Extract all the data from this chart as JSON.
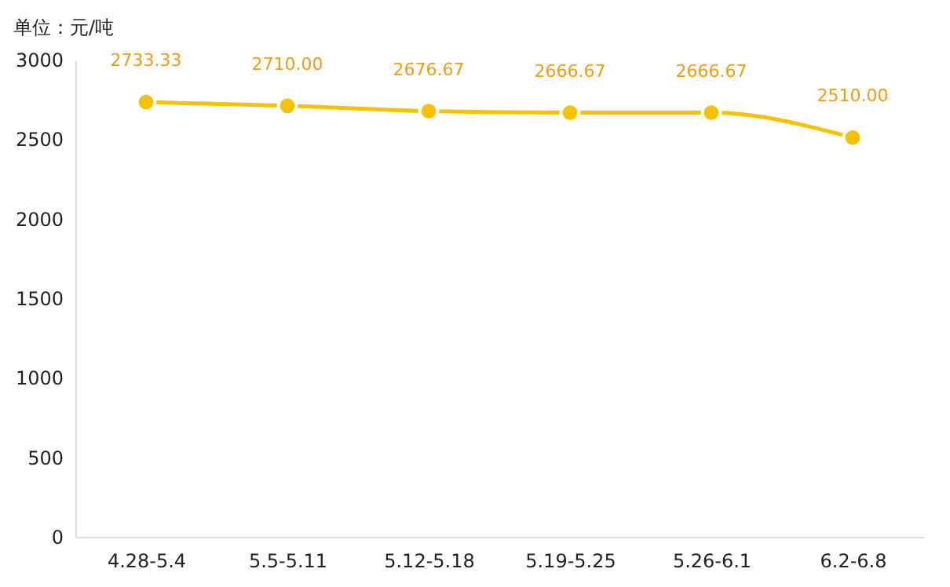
{
  "chart_data": {
    "type": "line",
    "ylabel": "单位：元/吨",
    "categories": [
      "4.28-5.4",
      "5.5-5.11",
      "5.12-5.18",
      "5.19-5.25",
      "5.26-6.1",
      "6.2-6.8"
    ],
    "series": [
      {
        "color": "#f7c100",
        "values": [
          2733.33,
          2710.0,
          2676.67,
          2666.67,
          2666.67,
          2510.0
        ]
      }
    ],
    "value_labels": [
      "2733.33",
      "2710.00",
      "2676.67",
      "2666.67",
      "2666.67",
      "2510.00"
    ],
    "ylim": [
      0,
      3000
    ],
    "yticks": [
      0,
      500,
      1000,
      1500,
      2000,
      2500,
      3000
    ],
    "marker": "circle",
    "grid": false
  }
}
